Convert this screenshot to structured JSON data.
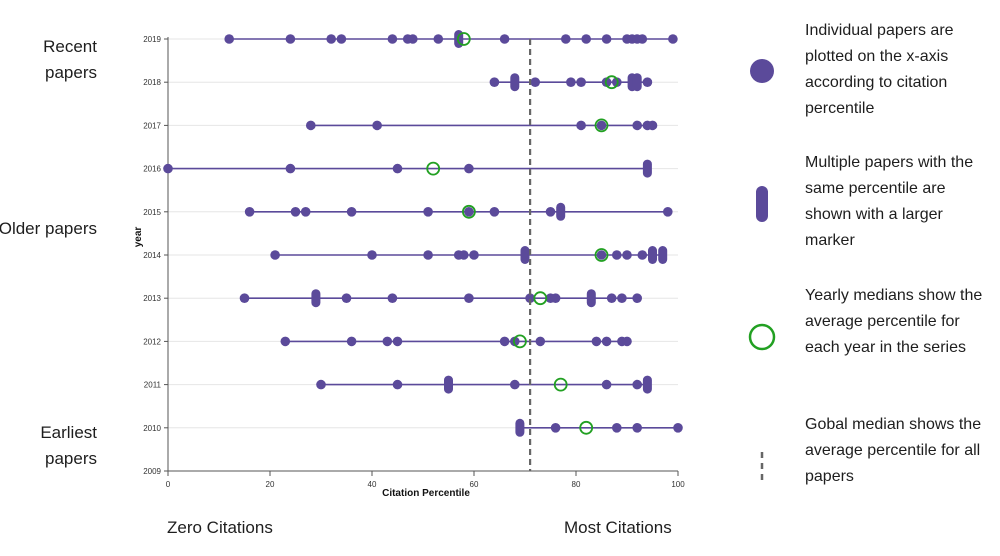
{
  "side_labels": {
    "recent": "Recent papers",
    "older": "Older papers",
    "earliest": "Earliest papers"
  },
  "bottom_labels": {
    "left": "Zero Citations",
    "right": "Most Citations"
  },
  "legend": [
    {
      "marker": "dot",
      "text": "Individual papers are plotted on the x-axis according to citation percentile"
    },
    {
      "marker": "pill",
      "text": "Multiple papers with the same percentile are shown with a larger marker"
    },
    {
      "marker": "ring",
      "text": "Yearly medians show the average percentile for each year in the series"
    },
    {
      "marker": "dash",
      "text": "Gobal median shows the average percentile for all papers"
    }
  ],
  "colors": {
    "dot": "#5b4a9a",
    "median": "#22a022",
    "global_median": "#666666",
    "line": "#5b4a9a",
    "grid": "#e6e6e6",
    "axis": "#555555"
  },
  "chart_data": {
    "type": "scatter",
    "title": "",
    "xlabel": "Citation Percentile",
    "ylabel": "year",
    "xlim": [
      0,
      100
    ],
    "ylim": [
      2009,
      2019
    ],
    "xticks": [
      0,
      20,
      40,
      60,
      80,
      100
    ],
    "yticks": [
      2009,
      2010,
      2011,
      2012,
      2013,
      2014,
      2015,
      2016,
      2017,
      2018,
      2019
    ],
    "global_median": 71,
    "series": [
      {
        "year": 2019,
        "median": 58,
        "points": [
          {
            "x": 12,
            "n": 1
          },
          {
            "x": 24,
            "n": 1
          },
          {
            "x": 32,
            "n": 1
          },
          {
            "x": 34,
            "n": 1
          },
          {
            "x": 44,
            "n": 1
          },
          {
            "x": 47,
            "n": 1
          },
          {
            "x": 48,
            "n": 1
          },
          {
            "x": 53,
            "n": 1
          },
          {
            "x": 57,
            "n": 2
          },
          {
            "x": 66,
            "n": 1
          },
          {
            "x": 78,
            "n": 1
          },
          {
            "x": 82,
            "n": 1
          },
          {
            "x": 86,
            "n": 1
          },
          {
            "x": 90,
            "n": 1
          },
          {
            "x": 91,
            "n": 1
          },
          {
            "x": 92,
            "n": 1
          },
          {
            "x": 93,
            "n": 1
          },
          {
            "x": 99,
            "n": 1
          }
        ]
      },
      {
        "year": 2018,
        "median": 87,
        "points": [
          {
            "x": 64,
            "n": 1
          },
          {
            "x": 68,
            "n": 2
          },
          {
            "x": 72,
            "n": 1
          },
          {
            "x": 79,
            "n": 1
          },
          {
            "x": 81,
            "n": 1
          },
          {
            "x": 86,
            "n": 1
          },
          {
            "x": 88,
            "n": 1
          },
          {
            "x": 91,
            "n": 2
          },
          {
            "x": 92,
            "n": 2
          },
          {
            "x": 94,
            "n": 1
          }
        ]
      },
      {
        "year": 2017,
        "median": 85,
        "points": [
          {
            "x": 28,
            "n": 1
          },
          {
            "x": 41,
            "n": 1
          },
          {
            "x": 81,
            "n": 1
          },
          {
            "x": 85,
            "n": 1
          },
          {
            "x": 92,
            "n": 1
          },
          {
            "x": 94,
            "n": 1
          },
          {
            "x": 95,
            "n": 1
          }
        ]
      },
      {
        "year": 2016,
        "median": 52,
        "points": [
          {
            "x": 0,
            "n": 1
          },
          {
            "x": 24,
            "n": 1
          },
          {
            "x": 45,
            "n": 1
          },
          {
            "x": 59,
            "n": 1
          },
          {
            "x": 94,
            "n": 2
          }
        ]
      },
      {
        "year": 2015,
        "median": 59,
        "points": [
          {
            "x": 16,
            "n": 1
          },
          {
            "x": 25,
            "n": 1
          },
          {
            "x": 27,
            "n": 1
          },
          {
            "x": 36,
            "n": 1
          },
          {
            "x": 51,
            "n": 1
          },
          {
            "x": 59,
            "n": 1
          },
          {
            "x": 64,
            "n": 1
          },
          {
            "x": 75,
            "n": 1
          },
          {
            "x": 77,
            "n": 2
          },
          {
            "x": 98,
            "n": 1
          }
        ]
      },
      {
        "year": 2014,
        "median": 85,
        "points": [
          {
            "x": 21,
            "n": 1
          },
          {
            "x": 40,
            "n": 1
          },
          {
            "x": 51,
            "n": 1
          },
          {
            "x": 57,
            "n": 1
          },
          {
            "x": 58,
            "n": 1
          },
          {
            "x": 60,
            "n": 1
          },
          {
            "x": 70,
            "n": 2
          },
          {
            "x": 85,
            "n": 1
          },
          {
            "x": 88,
            "n": 1
          },
          {
            "x": 90,
            "n": 1
          },
          {
            "x": 93,
            "n": 1
          },
          {
            "x": 95,
            "n": 2
          },
          {
            "x": 97,
            "n": 2
          }
        ]
      },
      {
        "year": 2013,
        "median": 73,
        "points": [
          {
            "x": 15,
            "n": 1
          },
          {
            "x": 29,
            "n": 2
          },
          {
            "x": 35,
            "n": 1
          },
          {
            "x": 44,
            "n": 1
          },
          {
            "x": 59,
            "n": 1
          },
          {
            "x": 71,
            "n": 1
          },
          {
            "x": 75,
            "n": 1
          },
          {
            "x": 76,
            "n": 1
          },
          {
            "x": 83,
            "n": 2
          },
          {
            "x": 87,
            "n": 1
          },
          {
            "x": 89,
            "n": 1
          },
          {
            "x": 92,
            "n": 1
          }
        ]
      },
      {
        "year": 2012,
        "median": 69,
        "points": [
          {
            "x": 23,
            "n": 1
          },
          {
            "x": 36,
            "n": 1
          },
          {
            "x": 43,
            "n": 1
          },
          {
            "x": 45,
            "n": 1
          },
          {
            "x": 66,
            "n": 1
          },
          {
            "x": 68,
            "n": 1
          },
          {
            "x": 73,
            "n": 1
          },
          {
            "x": 84,
            "n": 1
          },
          {
            "x": 86,
            "n": 1
          },
          {
            "x": 89,
            "n": 1
          },
          {
            "x": 90,
            "n": 1
          }
        ]
      },
      {
        "year": 2011,
        "median": 77,
        "points": [
          {
            "x": 30,
            "n": 1
          },
          {
            "x": 45,
            "n": 1
          },
          {
            "x": 55,
            "n": 2
          },
          {
            "x": 68,
            "n": 1
          },
          {
            "x": 86,
            "n": 1
          },
          {
            "x": 92,
            "n": 1
          },
          {
            "x": 94,
            "n": 2
          }
        ]
      },
      {
        "year": 2010,
        "median": 82,
        "points": [
          {
            "x": 69,
            "n": 2
          },
          {
            "x": 76,
            "n": 1
          },
          {
            "x": 88,
            "n": 1
          },
          {
            "x": 92,
            "n": 1
          },
          {
            "x": 100,
            "n": 1
          }
        ]
      }
    ]
  }
}
